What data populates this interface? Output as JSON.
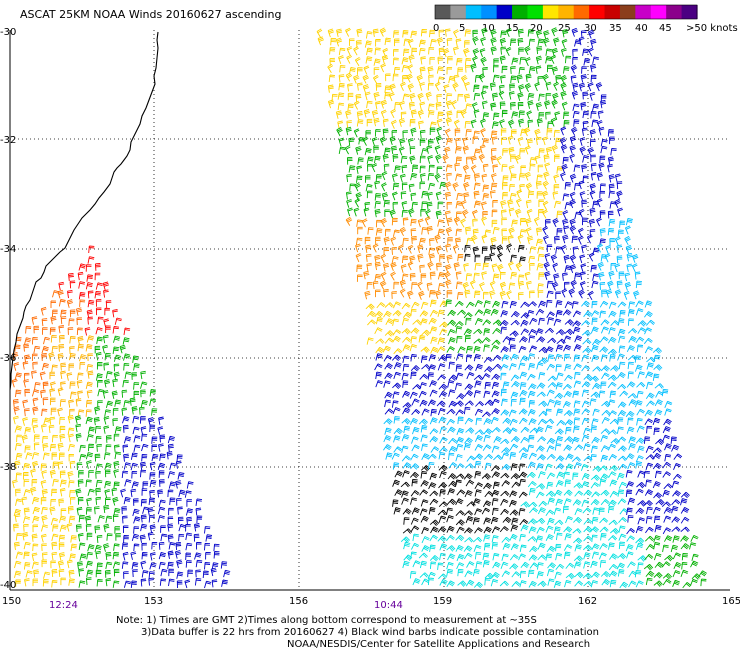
{
  "title": "ASCAT 25KM NOAA Winds 20160627 ascending",
  "legend": {
    "labels": [
      "0",
      "5",
      "10",
      "15",
      "20",
      "25",
      "30",
      "35",
      "40",
      "45",
      ">50 knots"
    ],
    "colors": [
      "#595959",
      "#9a9a9a",
      "#00bfff",
      "#0090ff",
      "#0000c8",
      "#00b000",
      "#00e000",
      "#ffe600",
      "#ffb400",
      "#ff6a00",
      "#ff0000",
      "#c80000",
      "#8b3e1c",
      "#c800c8",
      "#ff00ff",
      "#8b008b",
      "#4b0082"
    ],
    "value_labels": [
      "0",
      "5",
      "10",
      "15",
      "20",
      "25",
      "30",
      "35",
      "40",
      "45",
      ">50 knots"
    ]
  },
  "axes": {
    "x_ticks": [
      "150",
      "153",
      "156",
      "159",
      "162",
      "165"
    ],
    "y_ticks": [
      "-30",
      "-32",
      "-34",
      "-36",
      "-38",
      "-40"
    ]
  },
  "pass_times": [
    "12:24",
    "10:44"
  ],
  "notes": [
    "Note: 1) Times are GMT 2)Times along bottom correspond to measurement at ~35S",
    "3)Data buffer is 22 hrs from 20160627 4) Black wind barbs indicate possible contamination",
    "NOAA/NESDIS/Center for Satellite Applications and Research"
  ],
  "colors": {
    "coastline": "#000000",
    "grid": "#000000",
    "time_text": "#66009b"
  }
}
